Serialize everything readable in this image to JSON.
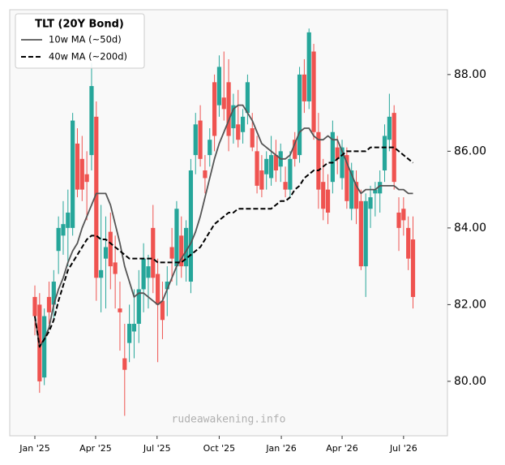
{
  "chart_data": {
    "type": "candlestick",
    "legend_title": "TLT (20Y Bond)",
    "annotation": "rudeawakening.info",
    "up_color": "#26a69a",
    "down_color": "#ef5350",
    "legend": "upper left",
    "xlim": [
      -37.2,
      611
    ],
    "ylim": [
      78.58,
      89.69
    ],
    "xticks": [
      {
        "value": 0,
        "label": "Jan '25"
      },
      {
        "value": 90,
        "label": "Apr '25"
      },
      {
        "value": 181,
        "label": "Jul '25"
      },
      {
        "value": 273,
        "label": "Oct '25"
      },
      {
        "value": 365,
        "label": "Jan '26"
      },
      {
        "value": 455,
        "label": "Apr '26"
      },
      {
        "value": 546,
        "label": "Jul '26"
      }
    ],
    "yticks": [
      {
        "value": 80,
        "label": "80.00"
      },
      {
        "value": 82,
        "label": "82.00"
      },
      {
        "value": 84,
        "label": "84.00"
      },
      {
        "value": 86,
        "label": "86.00"
      },
      {
        "value": 88,
        "label": "88.00"
      }
    ],
    "x": [
      0,
      7,
      14,
      21,
      28,
      35,
      42,
      49,
      56,
      63,
      70,
      77,
      84,
      91,
      98,
      105,
      112,
      119,
      126,
      133,
      140,
      147,
      154,
      161,
      168,
      175,
      182,
      189,
      196,
      203,
      210,
      217,
      224,
      231,
      238,
      245,
      252,
      259,
      266,
      273,
      280,
      287,
      294,
      301,
      308,
      315,
      322,
      329,
      336,
      343,
      350,
      357,
      364,
      371,
      378,
      385,
      392,
      399,
      406,
      413,
      420,
      427,
      434,
      441,
      448,
      455,
      462,
      469,
      476,
      483,
      490,
      497,
      504,
      511,
      518,
      525,
      532,
      539,
      546,
      553,
      560
    ],
    "open": [
      82.2,
      82.0,
      80.1,
      82.2,
      82.0,
      83.4,
      83.8,
      84.0,
      84.0,
      86.2,
      85.8,
      85.4,
      85.9,
      86.9,
      82.7,
      83.2,
      83.9,
      83.1,
      81.9,
      80.6,
      81.0,
      81.3,
      81.5,
      82.4,
      82.7,
      84.0,
      82.8,
      82.1,
      82.4,
      83.5,
      83.0,
      83.8,
      83.0,
      82.6,
      85.9,
      86.8,
      85.5,
      85.9,
      87.8,
      87.2,
      87.4,
      87.8,
      86.6,
      86.7,
      86.5,
      87.0,
      86.6,
      86.0,
      85.5,
      85.4,
      85.3,
      85.9,
      85.6,
      85.2,
      85.0,
      86.3,
      85.9,
      88.0,
      87.3,
      88.6,
      86.5,
      85.2,
      85.0,
      85.2,
      86.1,
      85.3,
      85.9,
      84.5,
      85.2,
      84.7,
      83.0,
      84.5,
      84.9,
      84.9,
      85.5,
      86.3,
      87.0,
      84.4,
      84.5,
      84.0,
      83.7
    ],
    "high": [
      82.5,
      82.3,
      81.9,
      82.6,
      82.9,
      84.3,
      84.7,
      85.0,
      87.0,
      86.6,
      86.4,
      86.0,
      88.3,
      87.3,
      84.6,
      84.3,
      84.4,
      83.8,
      82.6,
      81.5,
      82.0,
      82.4,
      82.9,
      83.6,
      83.3,
      84.6,
      83.2,
      82.6,
      83.0,
      84.0,
      84.7,
      84.3,
      84.2,
      85.8,
      87.0,
      87.2,
      85.9,
      86.6,
      88.0,
      88.5,
      88.6,
      88.4,
      87.5,
      87.6,
      87.1,
      88.0,
      87.0,
      86.4,
      85.9,
      86.0,
      86.4,
      86.3,
      86.2,
      85.6,
      86.0,
      86.5,
      88.2,
      88.4,
      89.2,
      88.8,
      87.0,
      85.8,
      85.4,
      86.8,
      86.4,
      86.3,
      86.1,
      85.7,
      85.5,
      85.0,
      84.9,
      85.1,
      85.2,
      85.5,
      86.7,
      87.5,
      87.2,
      84.8,
      84.8,
      84.3,
      84.3
    ],
    "low": [
      81.2,
      79.7,
      79.9,
      81.5,
      81.6,
      82.8,
      83.3,
      83.0,
      83.8,
      84.8,
      84.7,
      84.2,
      85.5,
      82.1,
      81.8,
      81.9,
      82.4,
      81.9,
      80.8,
      79.1,
      80.5,
      80.6,
      81.0,
      81.8,
      81.9,
      82.3,
      80.5,
      81.1,
      81.7,
      82.6,
      82.5,
      82.7,
      82.6,
      82.3,
      85.4,
      85.6,
      84.9,
      85.6,
      86.0,
      86.9,
      86.8,
      86.0,
      86.2,
      86.1,
      86.2,
      86.7,
      86.0,
      84.9,
      84.8,
      85.0,
      85.1,
      85.2,
      85.2,
      84.8,
      84.8,
      85.6,
      85.7,
      87.0,
      87.1,
      86.3,
      84.5,
      84.2,
      84.1,
      84.9,
      85.4,
      85.0,
      84.5,
      84.2,
      84.1,
      82.9,
      82.2,
      84.0,
      84.3,
      84.4,
      85.2,
      86.0,
      85.0,
      83.4,
      83.8,
      82.9,
      81.9
    ],
    "close": [
      81.7,
      80.0,
      81.7,
      81.8,
      82.6,
      84.0,
      84.1,
      84.4,
      86.8,
      85.0,
      85.0,
      85.2,
      87.7,
      82.7,
      82.9,
      83.5,
      83.0,
      82.8,
      81.8,
      80.3,
      81.5,
      81.5,
      82.4,
      83.2,
      83.0,
      82.7,
      82.0,
      81.6,
      82.6,
      83.2,
      84.5,
      83.0,
      84.0,
      85.5,
      86.7,
      85.8,
      85.3,
      86.3,
      86.4,
      88.2,
      87.1,
      86.4,
      87.2,
      86.3,
      86.9,
      87.8,
      86.1,
      85.1,
      85.0,
      85.8,
      85.9,
      85.5,
      86.0,
      85.0,
      85.8,
      85.8,
      88.0,
      87.3,
      89.1,
      86.5,
      85.0,
      84.5,
      84.4,
      86.5,
      85.8,
      86.1,
      84.7,
      85.5,
      84.5,
      83.0,
      84.7,
      84.8,
      85.0,
      85.2,
      86.4,
      86.9,
      85.2,
      84.0,
      84.2,
      83.2,
      82.2
    ],
    "series": [
      {
        "name": "10w MA (~50d)",
        "color": "#555555",
        "dashed": false,
        "values": [
          81.7,
          80.9,
          81.1,
          81.4,
          82.0,
          82.4,
          82.7,
          83.1,
          83.4,
          83.6,
          84.0,
          84.3,
          84.6,
          84.9,
          84.9,
          84.9,
          84.6,
          84.1,
          83.6,
          83.0,
          82.6,
          82.2,
          82.3,
          82.3,
          82.2,
          82.1,
          82.0,
          82.1,
          82.4,
          82.7,
          83.0,
          83.2,
          83.4,
          83.6,
          83.9,
          84.3,
          84.8,
          85.3,
          85.8,
          86.2,
          86.5,
          86.8,
          87.1,
          87.2,
          87.2,
          87.0,
          86.8,
          86.5,
          86.2,
          86.1,
          86.0,
          85.9,
          85.8,
          85.8,
          85.9,
          86.2,
          86.5,
          86.6,
          86.6,
          86.4,
          86.3,
          86.3,
          86.4,
          86.3,
          86.3,
          86.0,
          85.7,
          85.4,
          85.1,
          84.9,
          85.0,
          85.0,
          85.0,
          85.1,
          85.1,
          85.1,
          85.1,
          85.0,
          85.0,
          84.9,
          84.9
        ]
      },
      {
        "name": "40w MA (~200d)",
        "color": "#000000",
        "dashed": true,
        "values": [
          81.7,
          80.9,
          81.1,
          81.3,
          81.6,
          82.1,
          82.5,
          82.9,
          83.1,
          83.3,
          83.5,
          83.7,
          83.8,
          83.8,
          83.7,
          83.7,
          83.6,
          83.5,
          83.4,
          83.3,
          83.2,
          83.2,
          83.2,
          83.2,
          83.2,
          83.2,
          83.1,
          83.1,
          83.1,
          83.1,
          83.1,
          83.1,
          83.2,
          83.3,
          83.4,
          83.5,
          83.7,
          83.9,
          84.1,
          84.2,
          84.3,
          84.4,
          84.4,
          84.5,
          84.5,
          84.5,
          84.5,
          84.5,
          84.5,
          84.5,
          84.5,
          84.6,
          84.7,
          84.7,
          84.8,
          85.0,
          85.1,
          85.3,
          85.4,
          85.5,
          85.5,
          85.6,
          85.7,
          85.7,
          85.8,
          85.9,
          86.0,
          86.0,
          86.0,
          86.0,
          86.0,
          86.1,
          86.1,
          86.1,
          86.1,
          86.1,
          86.1,
          86.0,
          85.9,
          85.8,
          85.7
        ]
      }
    ]
  }
}
